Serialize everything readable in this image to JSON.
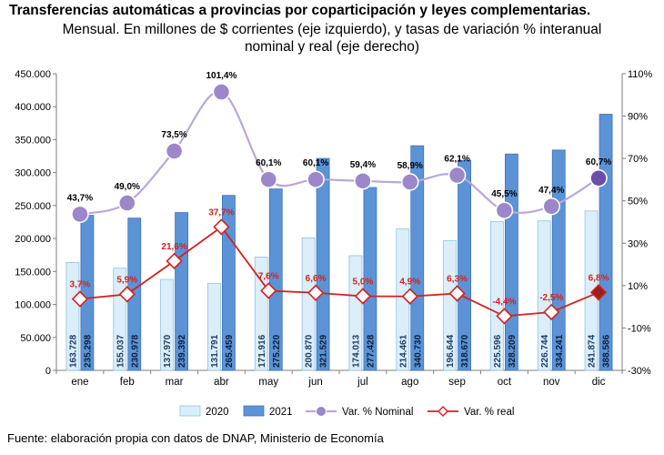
{
  "title": "Transferencias automáticas a provincias por coparticipación y leyes complementarias.",
  "subtitle_line1": "Mensual. En millones de $ corrientes (eje izquierdo), y tasas de variación % interanual",
  "subtitle_line2": "nominal y real (eje derecho)",
  "source": "Fuente: elaboración propia con datos de DNAP, Ministerio de Economía",
  "colors": {
    "bar2020_fill": "#dbeef9",
    "bar2020_stroke": "#8fc3e6",
    "bar2021_fill": "#5b93d6",
    "bar2021_stroke": "#3f73b8",
    "nominal_line": "#b9a8d8",
    "nominal_marker": "#9b87c9",
    "nominal_marker_last": "#6a4fa8",
    "real_line": "#d62020",
    "real_marker_last": "#9b1f1f"
  },
  "chart_data": {
    "type": "bar",
    "categories": [
      "ene",
      "feb",
      "mar",
      "abr",
      "may",
      "jun",
      "jul",
      "ago",
      "sep",
      "oct",
      "nov",
      "dic"
    ],
    "series": [
      {
        "name": "2020",
        "axis": "left",
        "kind": "bar",
        "values": [
          163728,
          155037,
          137970,
          131791,
          171916,
          200870,
          174013,
          214461,
          196644,
          225596,
          226744,
          241874
        ],
        "labels": [
          "163.728",
          "155.037",
          "137.970",
          "131.791",
          "171.916",
          "200.870",
          "174.013",
          "214.461",
          "196.644",
          "225.596",
          "226.744",
          "241.874"
        ]
      },
      {
        "name": "2021",
        "axis": "left",
        "kind": "bar",
        "values": [
          235298,
          230978,
          239392,
          265459,
          275220,
          321529,
          277428,
          340730,
          318670,
          328209,
          334241,
          388586
        ],
        "labels": [
          "235.298",
          "230.978",
          "239.392",
          "265.459",
          "275.220",
          "321.529",
          "277.428",
          "340.730",
          "318.670",
          "328.209",
          "334.241",
          "388.586"
        ]
      },
      {
        "name": "Var. % Nominal",
        "axis": "right",
        "kind": "line",
        "values": [
          43.7,
          49.0,
          73.5,
          101.4,
          60.1,
          60.1,
          59.4,
          58.9,
          62.1,
          45.5,
          47.4,
          60.7
        ],
        "labels": [
          "43,7%",
          "49,0%",
          "73,5%",
          "101,4%",
          "60,1%",
          "60,1%",
          "59,4%",
          "58,9%",
          "62,1%",
          "45,5%",
          "47,4%",
          "60,7%"
        ]
      },
      {
        "name": "Var. % real",
        "axis": "right",
        "kind": "line",
        "values": [
          3.7,
          5.9,
          21.6,
          37.7,
          7.6,
          6.6,
          5.0,
          4.9,
          6.3,
          -4.4,
          -2.5,
          6.8
        ],
        "labels": [
          "3,7%",
          "5,9%",
          "21,6%",
          "37,7%",
          "7,6%",
          "6,6%",
          "5,0%",
          "4,9%",
          "6,3%",
          "-4,4%",
          "-2,5%",
          "6,8%"
        ]
      }
    ],
    "left_axis": {
      "min": 0,
      "max": 450000,
      "ticks": [
        0,
        50000,
        100000,
        150000,
        200000,
        250000,
        300000,
        350000,
        400000,
        450000
      ],
      "tick_labels": [
        "0",
        "50.000",
        "100.000",
        "150.000",
        "200.000",
        "250.000",
        "300.000",
        "350.000",
        "400.000",
        "450.000"
      ]
    },
    "right_axis": {
      "min": -30,
      "max": 110,
      "ticks": [
        -30,
        -10,
        10,
        30,
        50,
        70,
        90,
        110
      ],
      "tick_labels": [
        "-30%",
        "-10%",
        "10%",
        "30%",
        "50%",
        "70%",
        "90%",
        "110%"
      ]
    },
    "legend": {
      "position": "bottom",
      "items": [
        "2020",
        "2021",
        "Var. % Nominal",
        "Var. % real"
      ]
    },
    "grid": false
  }
}
